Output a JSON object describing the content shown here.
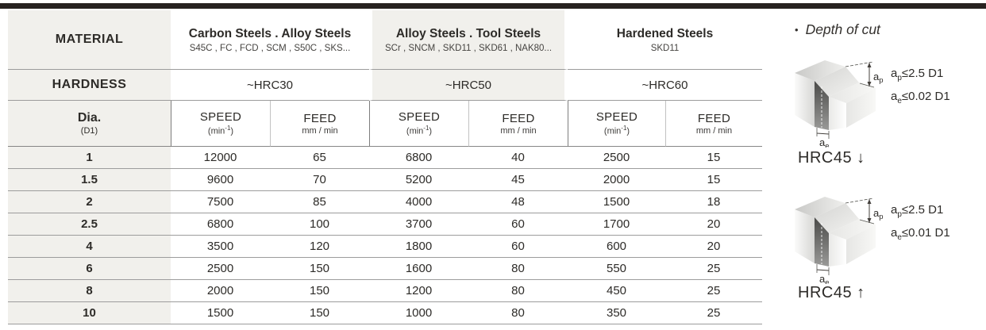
{
  "colors": {
    "top_bar": "#272220",
    "cell_shade": "#f1f0ec",
    "grid_line": "#9c9c9c",
    "text": "#2d2b28"
  },
  "table": {
    "material_label": "MATERIAL",
    "hardness_label": "HARDNESS",
    "dia_label": "Dia.",
    "dia_sub": "(D1)",
    "speed_label": "SPEED",
    "speed_unit_pre": "(min",
    "speed_unit_sup": "-1",
    "speed_unit_post": ")",
    "feed_label": "FEED",
    "feed_unit": "mm / min",
    "groups": [
      {
        "title": "Carbon Steels . Alloy Steels",
        "subtitle": "S45C , FC , FCD , SCM , S50C , SKS...",
        "hardness": "~HRC30"
      },
      {
        "title": "Alloy  Steels . Tool Steels",
        "subtitle": "SCr , SNCM , SKD11 , SKD61 , NAK80...",
        "hardness": "~HRC50"
      },
      {
        "title": "Hardened Steels",
        "subtitle": "SKD11",
        "hardness": "~HRC60"
      }
    ],
    "rows": [
      {
        "dia": "1",
        "values": [
          "12000",
          "65",
          "6800",
          "40",
          "2500",
          "15"
        ]
      },
      {
        "dia": "1.5",
        "values": [
          "9600",
          "70",
          "5200",
          "45",
          "2000",
          "15"
        ]
      },
      {
        "dia": "2",
        "values": [
          "7500",
          "85",
          "4000",
          "48",
          "1500",
          "18"
        ]
      },
      {
        "dia": "2.5",
        "values": [
          "6800",
          "100",
          "3700",
          "60",
          "1700",
          "20"
        ]
      },
      {
        "dia": "4",
        "values": [
          "3500",
          "120",
          "1800",
          "60",
          "600",
          "20"
        ]
      },
      {
        "dia": "6",
        "values": [
          "2500",
          "150",
          "1600",
          "80",
          "550",
          "25"
        ]
      },
      {
        "dia": "8",
        "values": [
          "2000",
          "150",
          "1200",
          "80",
          "450",
          "25"
        ]
      },
      {
        "dia": "10",
        "values": [
          "1500",
          "150",
          "1000",
          "80",
          "350",
          "25"
        ]
      }
    ]
  },
  "depth_of_cut": {
    "bullet": "•",
    "title": "Depth of cut",
    "diagrams": [
      {
        "dim_base": "a",
        "dim_sub": "p",
        "width_base": "a",
        "width_sub": "e",
        "cond1_base": "a",
        "cond1_sub": "p",
        "cond1_rest": "≤2.5 D1",
        "cond2_base": "a",
        "cond2_sub": "e",
        "cond2_rest": "≤0.02 D1",
        "hardness": "HRC45 ↓"
      },
      {
        "dim_base": "a",
        "dim_sub": "p",
        "width_base": "a",
        "width_sub": "e",
        "cond1_base": "a",
        "cond1_sub": "p",
        "cond1_rest": "≤2.5 D1",
        "cond2_base": "a",
        "cond2_sub": "e",
        "cond2_rest": "≤0.01 D1",
        "hardness": "HRC45 ↑"
      }
    ]
  }
}
